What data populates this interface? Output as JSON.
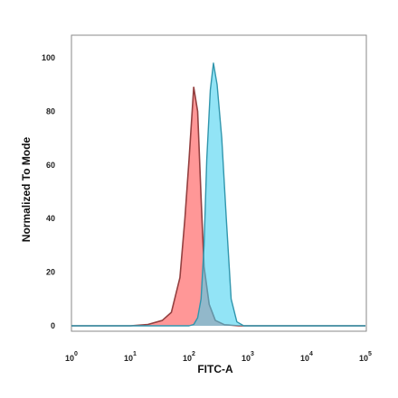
{
  "chart_data": {
    "type": "area",
    "title": "",
    "xlabel": "FITC-A",
    "ylabel": "Normalized To Mode",
    "x_scale": "log10",
    "xlim": [
      1,
      100000
    ],
    "ylim": [
      0,
      100
    ],
    "x_ticks": [
      {
        "base": "10",
        "exp": "0"
      },
      {
        "base": "10",
        "exp": "1"
      },
      {
        "base": "10",
        "exp": "2"
      },
      {
        "base": "10",
        "exp": "3"
      },
      {
        "base": "10",
        "exp": "4"
      },
      {
        "base": "10",
        "exp": "5"
      }
    ],
    "y_ticks": [
      "0",
      "20",
      "40",
      "60",
      "80",
      "100"
    ],
    "grid": false,
    "series": [
      {
        "color": "#ff6f6f",
        "x": [
          1,
          10,
          20,
          35,
          50,
          70,
          85,
          100,
          120,
          140,
          160,
          180,
          220,
          280,
          400,
          700,
          100000
        ],
        "y": [
          0,
          0,
          0.5,
          2,
          5,
          18,
          40,
          62,
          89,
          80,
          48,
          22,
          8,
          2,
          0.4,
          0,
          0
        ]
      },
      {
        "color": "#44d1f0",
        "x": [
          1,
          100,
          120,
          140,
          160,
          180,
          200,
          230,
          260,
          300,
          360,
          430,
          520,
          650,
          850,
          100000
        ],
        "y": [
          0,
          0,
          0.5,
          3,
          10,
          30,
          62,
          88,
          98,
          90,
          70,
          40,
          10,
          1.5,
          0,
          0
        ]
      }
    ]
  }
}
